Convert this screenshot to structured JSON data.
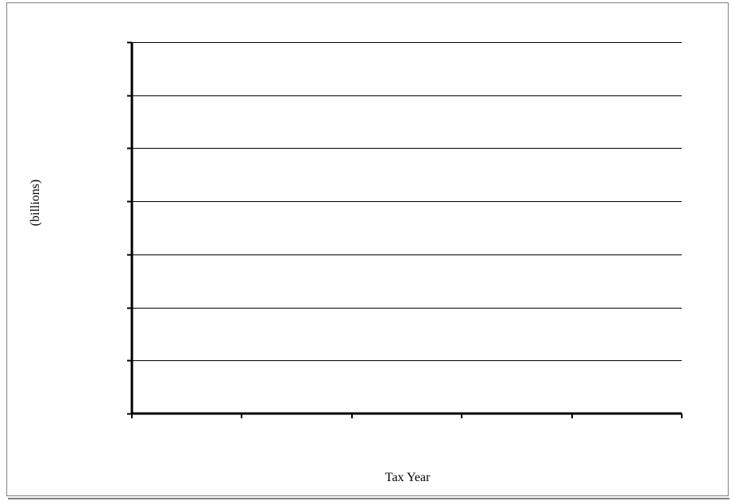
{
  "chart_data": {
    "type": "line",
    "title": "",
    "xlabel": "Tax Year",
    "ylabel": "(billions)",
    "categories": [
      "",
      "",
      "",
      "",
      ""
    ],
    "series": [],
    "y_tick_count": 7,
    "x_category_count": 5,
    "grid": true,
    "legend": "none",
    "colors": {
      "gridline": "#000000",
      "axis": "#000000",
      "frame": "#7f7f7f"
    }
  }
}
